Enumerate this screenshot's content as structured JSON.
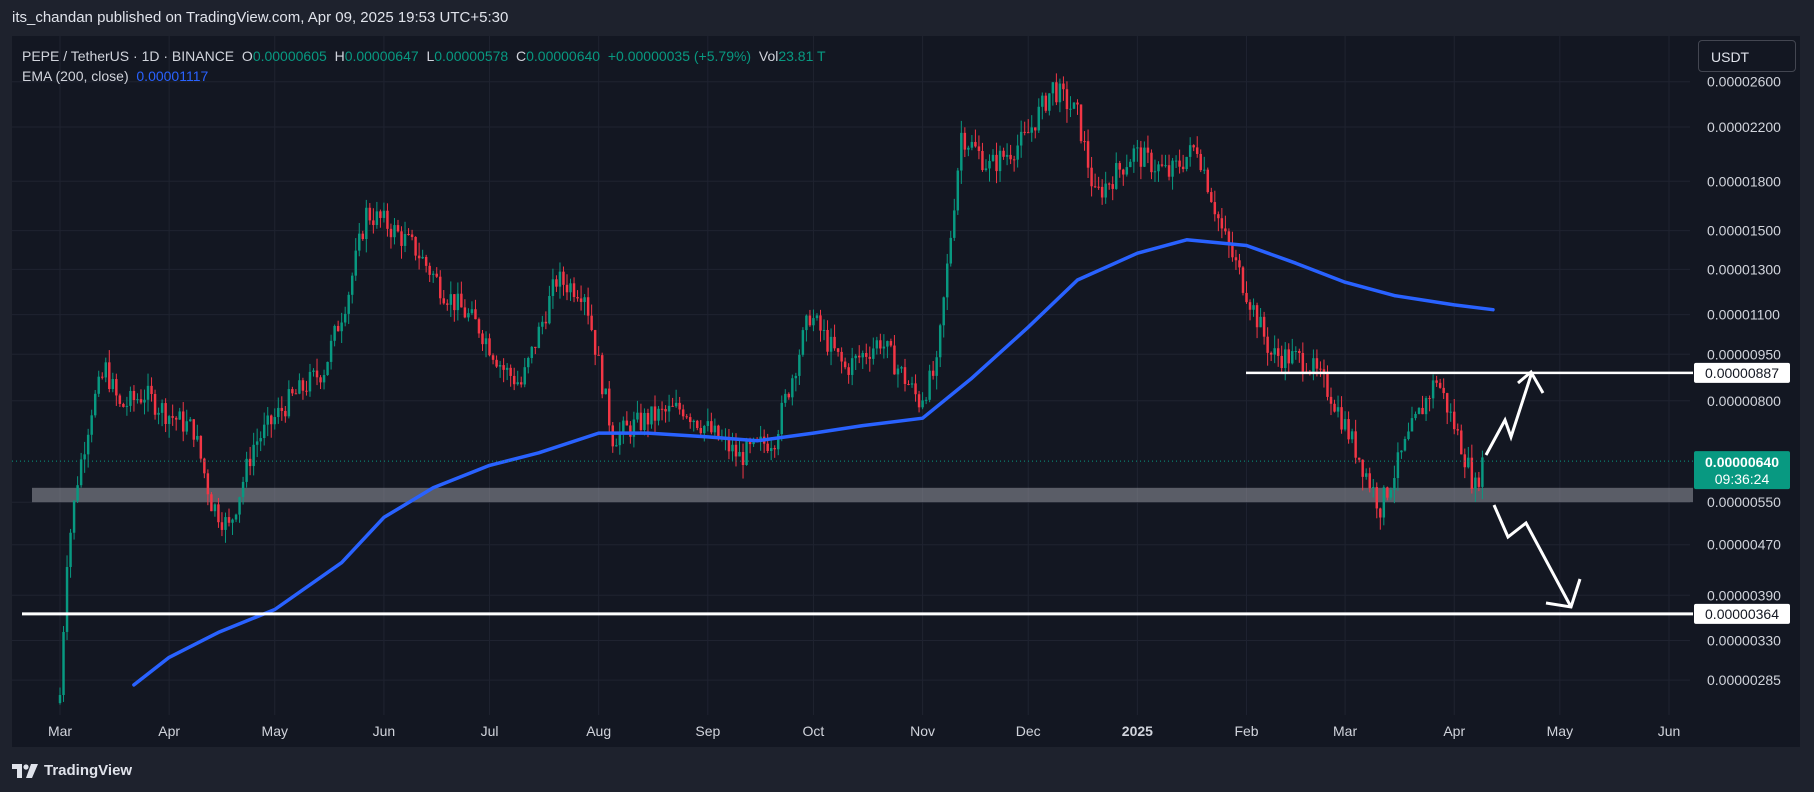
{
  "header": {
    "publisher_line": "its_chandan published on TradingView.com, Apr 09, 2025 19:53 UTC+5:30"
  },
  "legend": {
    "symbol": "PEPE / TetherUS · 1D · BINANCE",
    "o_label": "O",
    "o_value": "0.00000605",
    "h_label": "H",
    "h_value": "0.00000647",
    "l_label": "L",
    "l_value": "0.00000578",
    "c_label": "C",
    "c_value": "0.00000640",
    "change": "+0.00000035 (+5.79%)",
    "vol_label": "Vol",
    "vol_value": "23.81 T",
    "ema_label": "EMA (200, close)",
    "ema_value": "0.00001117"
  },
  "currency_button": "USDT",
  "footer": {
    "brand": "TradingView"
  },
  "colors": {
    "bg": "#131722",
    "up": "#089981",
    "down": "#f23645",
    "ema": "#2962ff",
    "grid": "#1f2330",
    "text": "#d1d4dc"
  },
  "chart_data": {
    "type": "candlestick",
    "symbol": "PEPE / TetherUS",
    "timeframe": "1D",
    "exchange": "BINANCE",
    "price_scale": "log",
    "y_ticks": [
      "0.00002600",
      "0.00002200",
      "0.00001800",
      "0.00001500",
      "0.00001300",
      "0.00001100",
      "0.00000950",
      "0.00000800",
      "0.00000550",
      "0.00000470",
      "0.00000390",
      "0.00000330",
      "0.00000285"
    ],
    "x_ticks": [
      "Mar",
      "Apr",
      "May",
      "Jun",
      "Jul",
      "Aug",
      "Sep",
      "Oct",
      "Nov",
      "Dec",
      "2025",
      "Feb",
      "Mar",
      "Apr",
      "May",
      "Jun"
    ],
    "price_markers": [
      {
        "value": "0.00000887",
        "kind": "resistance"
      },
      {
        "value": "0.00000364",
        "kind": "support"
      }
    ],
    "last_price": {
      "value": "0.00000640",
      "countdown": "09:36:24"
    },
    "support_zone": [
      5.5e-06,
      5.8e-06
    ],
    "ema_200": [
      [
        "2024-03-22",
        2.8e-06
      ],
      [
        "2024-04-01",
        3.1e-06
      ],
      [
        "2024-04-15",
        3.4e-06
      ],
      [
        "2024-05-01",
        3.7e-06
      ],
      [
        "2024-05-20",
        4.4e-06
      ],
      [
        "2024-06-01",
        5.2e-06
      ],
      [
        "2024-06-15",
        5.8e-06
      ],
      [
        "2024-07-01",
        6.3e-06
      ],
      [
        "2024-07-15",
        6.6e-06
      ],
      [
        "2024-08-01",
        7.1e-06
      ],
      [
        "2024-08-15",
        7.1e-06
      ],
      [
        "2024-09-01",
        7e-06
      ],
      [
        "2024-09-15",
        6.9e-06
      ],
      [
        "2024-10-01",
        7.1e-06
      ],
      [
        "2024-10-15",
        7.3e-06
      ],
      [
        "2024-11-01",
        7.5e-06
      ],
      [
        "2024-11-15",
        8.7e-06
      ],
      [
        "2024-12-01",
        1.05e-05
      ],
      [
        "2024-12-15",
        1.25e-05
      ],
      [
        "2025-01-01",
        1.38e-05
      ],
      [
        "2025-01-15",
        1.45e-05
      ],
      [
        "2025-02-01",
        1.42e-05
      ],
      [
        "2025-02-15",
        1.33e-05
      ],
      [
        "2025-03-01",
        1.24e-05
      ],
      [
        "2025-03-15",
        1.18e-05
      ],
      [
        "2025-04-01",
        1.14e-05
      ],
      [
        "2025-04-12",
        1.12e-05
      ]
    ],
    "price_path": [
      [
        "2024-03-01",
        2.7e-06
      ],
      [
        "2024-03-03",
        4.5e-06
      ],
      [
        "2024-03-06",
        6e-06
      ],
      [
        "2024-03-10",
        7.8e-06
      ],
      [
        "2024-03-14",
        9e-06
      ],
      [
        "2024-03-18",
        7.8e-06
      ],
      [
        "2024-03-25",
        8.2e-06
      ],
      [
        "2024-04-01",
        7.6e-06
      ],
      [
        "2024-04-08",
        7.2e-06
      ],
      [
        "2024-04-13",
        5.5e-06
      ],
      [
        "2024-04-18",
        5e-06
      ],
      [
        "2024-04-25",
        6.8e-06
      ],
      [
        "2024-05-05",
        8e-06
      ],
      [
        "2024-05-15",
        9e-06
      ],
      [
        "2024-05-22",
        1.2e-05
      ],
      [
        "2024-05-27",
        1.6e-05
      ],
      [
        "2024-06-01",
        1.55e-05
      ],
      [
        "2024-06-10",
        1.4e-05
      ],
      [
        "2024-06-18",
        1.2e-05
      ],
      [
        "2024-06-28",
        1.05e-05
      ],
      [
        "2024-07-05",
        9e-06
      ],
      [
        "2024-07-10",
        8.5e-06
      ],
      [
        "2024-07-20",
        1.25e-05
      ],
      [
        "2024-07-28",
        1.2e-05
      ],
      [
        "2024-08-05",
        7e-06
      ],
      [
        "2024-08-15",
        7.5e-06
      ],
      [
        "2024-08-25",
        7.8e-06
      ],
      [
        "2024-09-01",
        7.2e-06
      ],
      [
        "2024-09-10",
        6.5e-06
      ],
      [
        "2024-09-20",
        7e-06
      ],
      [
        "2024-09-30",
        1.1e-05
      ],
      [
        "2024-10-10",
        9e-06
      ],
      [
        "2024-10-20",
        1e-05
      ],
      [
        "2024-10-31",
        8e-06
      ],
      [
        "2024-11-05",
        9e-06
      ],
      [
        "2024-11-12",
        2.15e-05
      ],
      [
        "2024-11-20",
        1.9e-05
      ],
      [
        "2024-11-30",
        2.1e-05
      ],
      [
        "2024-12-08",
        2.55e-05
      ],
      [
        "2024-12-15",
        2.3e-05
      ],
      [
        "2024-12-20",
        1.7e-05
      ],
      [
        "2024-12-31",
        2e-05
      ],
      [
        "2025-01-10",
        1.85e-05
      ],
      [
        "2025-01-18",
        2.05e-05
      ],
      [
        "2025-01-25",
        1.5e-05
      ],
      [
        "2025-02-01",
        1.2e-05
      ],
      [
        "2025-02-08",
        9.5e-06
      ],
      [
        "2025-02-18",
        9.3e-06
      ],
      [
        "2025-02-25",
        8.2e-06
      ],
      [
        "2025-03-05",
        6.5e-06
      ],
      [
        "2025-03-11",
        5.4e-06
      ],
      [
        "2025-03-20",
        7.2e-06
      ],
      [
        "2025-03-27",
        8.7e-06
      ],
      [
        "2025-04-03",
        6.8e-06
      ],
      [
        "2025-04-07",
        5.8e-06
      ],
      [
        "2025-04-09",
        6.4e-06
      ]
    ],
    "annotations": [
      {
        "type": "arrow",
        "direction": "up",
        "target": "0.00000887"
      },
      {
        "type": "arrow",
        "direction": "down",
        "target": "0.00000364"
      }
    ]
  }
}
